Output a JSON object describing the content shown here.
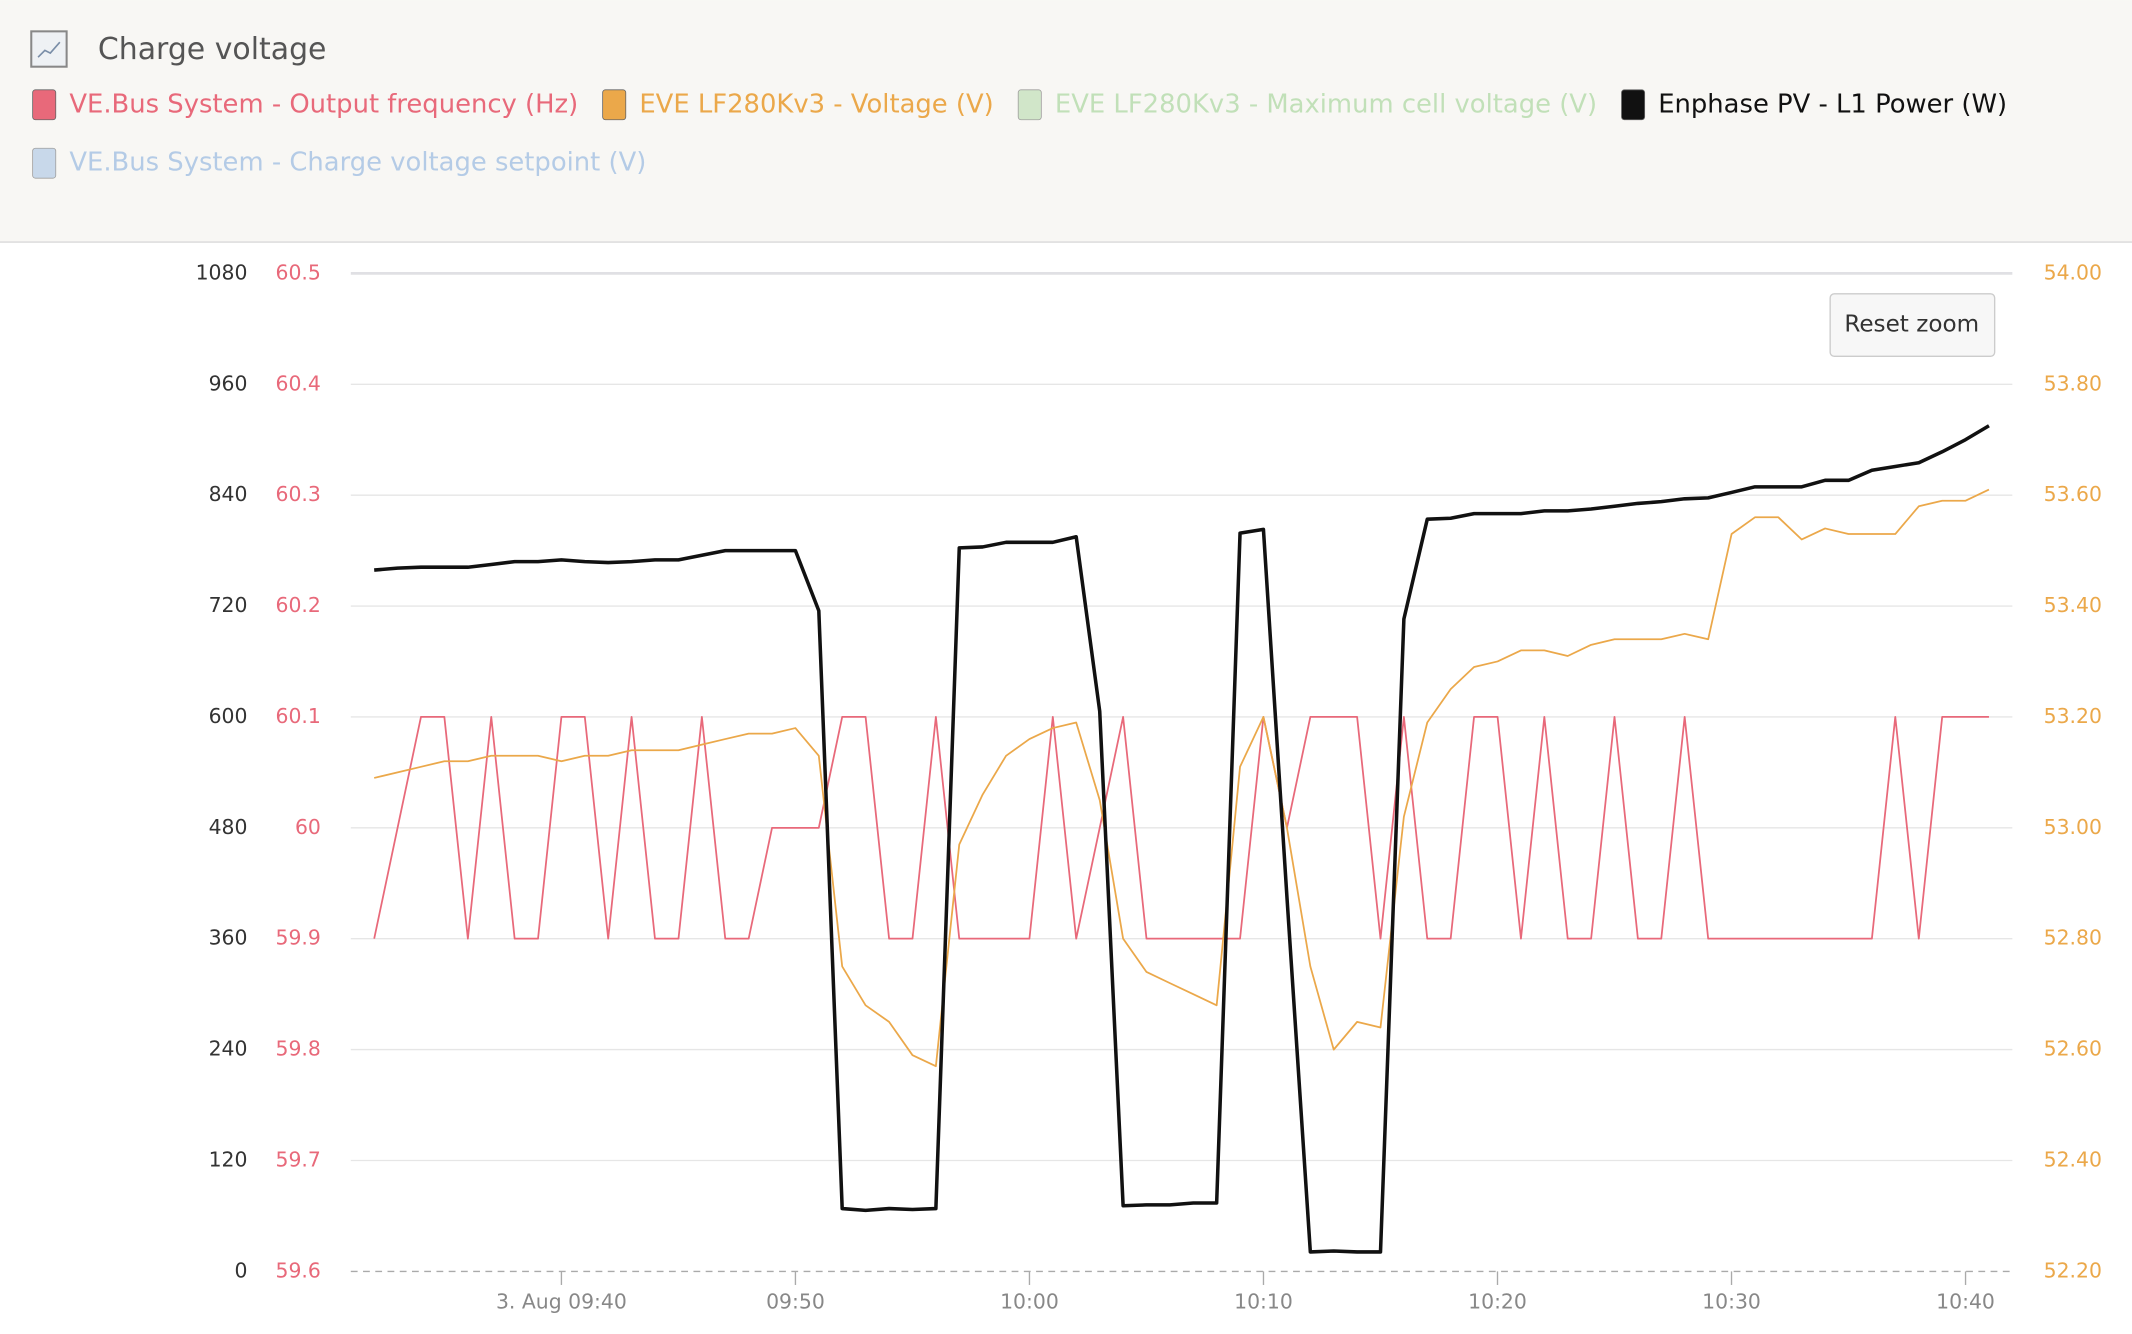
{
  "header": {
    "title": "Charge voltage",
    "button": "Reset zoom"
  },
  "chart_data": {
    "type": "line",
    "x": [
      "09:32",
      "09:33",
      "09:34",
      "09:35",
      "09:36",
      "09:37",
      "09:38",
      "09:39",
      "09:40",
      "09:41",
      "09:42",
      "09:43",
      "09:44",
      "09:45",
      "09:46",
      "09:47",
      "09:48",
      "09:49",
      "09:50",
      "09:51",
      "09:52",
      "09:53",
      "09:54",
      "09:55",
      "09:56",
      "09:57",
      "09:58",
      "09:59",
      "10:00",
      "10:01",
      "10:02",
      "10:03",
      "10:04",
      "10:05",
      "10:06",
      "10:07",
      "10:08",
      "10:09",
      "10:10",
      "10:11",
      "10:12",
      "10:13",
      "10:14",
      "10:15",
      "10:16",
      "10:17",
      "10:18",
      "10:19",
      "10:20",
      "10:21",
      "10:22",
      "10:23",
      "10:24",
      "10:25",
      "10:26",
      "10:27",
      "10:28",
      "10:29",
      "10:30",
      "10:31",
      "10:32",
      "10:33",
      "10:34",
      "10:35",
      "10:36",
      "10:37",
      "10:38",
      "10:39",
      "10:40",
      "10:41"
    ],
    "xlim": [
      "09:31",
      "10:42"
    ],
    "xticks": [
      {
        "value": "09:40",
        "label": "3. Aug 09:40"
      },
      "09:50",
      "10:00",
      "10:10",
      "10:20",
      "10:30",
      "10:40"
    ],
    "ylim": [
      0,
      1080
    ],
    "yticks": [
      0,
      120,
      240,
      360,
      480,
      600,
      720,
      840,
      960,
      1080
    ],
    "y2lim": [
      59.6,
      60.5
    ],
    "y2ticks": [
      59.6,
      59.7,
      59.8,
      59.9,
      60,
      60.1,
      60.2,
      60.3,
      60.4,
      60.5
    ],
    "y3lim": [
      52.2,
      54.0
    ],
    "y3ticks": [
      {
        "value": 52.2,
        "label": "52.20"
      },
      {
        "value": 52.4,
        "label": "52.40"
      },
      {
        "value": 52.6,
        "label": "52.60"
      },
      {
        "value": 52.8,
        "label": "52.80"
      },
      {
        "value": 53,
        "label": "53.00"
      },
      {
        "value": 53.2,
        "label": "53.20"
      },
      {
        "value": 53.4,
        "label": "53.40"
      },
      {
        "value": 53.6,
        "label": "53.60"
      },
      {
        "value": 53.8,
        "label": "53.80"
      },
      {
        "value": 54,
        "label": "54.00"
      }
    ],
    "grid": true,
    "series": [
      {
        "name": "VE.Bus System - Output frequency (Hz)",
        "color": "#e8697a",
        "axis": "y2",
        "visible": true,
        "values": [
          59.9,
          60,
          60.1,
          60.1,
          59.9,
          60.1,
          59.9,
          59.9,
          60.1,
          60.1,
          59.9,
          60.1,
          59.9,
          59.9,
          60.1,
          59.9,
          59.9,
          60,
          60,
          60,
          60.1,
          60.1,
          59.9,
          59.9,
          60.1,
          59.9,
          59.9,
          59.9,
          59.9,
          60.1,
          59.9,
          60,
          60.1,
          59.9,
          59.9,
          59.9,
          59.9,
          59.9,
          60.1,
          60,
          60.1,
          60.1,
          60.1,
          59.9,
          60.1,
          59.9,
          59.9,
          60.1,
          60.1,
          59.9,
          60.1,
          59.9,
          59.9,
          60.1,
          59.9,
          59.9,
          60.1,
          59.9,
          59.9,
          59.9,
          59.9,
          59.9,
          59.9,
          59.9,
          59.9,
          60.1,
          59.9,
          60.1,
          60.1,
          60.1
        ]
      },
      {
        "name": "EVE LF280Kv3 - Voltage (V)",
        "color": "#eba84a",
        "axis": "y3",
        "visible": true,
        "values": [
          53.09,
          53.1,
          53.11,
          53.12,
          53.12,
          53.13,
          53.13,
          53.13,
          53.12,
          53.13,
          53.13,
          53.14,
          53.14,
          53.14,
          53.15,
          53.16,
          53.17,
          53.17,
          53.18,
          53.13,
          52.75,
          52.68,
          52.65,
          52.59,
          52.57,
          52.97,
          53.06,
          53.13,
          53.16,
          53.18,
          53.19,
          53.05,
          52.8,
          52.74,
          52.72,
          52.7,
          52.68,
          53.11,
          53.2,
          53.0,
          52.75,
          52.6,
          52.65,
          52.64,
          53.02,
          53.19,
          53.25,
          53.29,
          53.3,
          53.32,
          53.32,
          53.31,
          53.33,
          53.34,
          53.34,
          53.34,
          53.35,
          53.34,
          53.53,
          53.56,
          53.56,
          53.52,
          53.54,
          53.53,
          53.53,
          53.53,
          53.58,
          53.59,
          53.59,
          53.61
        ]
      },
      {
        "name": "EVE LF280Kv3 - Maximum cell voltage (V)",
        "color": "#b8dcae",
        "axis": "y3",
        "visible": false
      },
      {
        "name": "Enphase PV - L1 Power (W)",
        "color": "#111111",
        "axis": "y",
        "visible": true,
        "values": [
          759,
          761,
          762,
          762,
          762,
          765,
          768,
          768,
          770,
          768,
          767,
          768,
          770,
          770,
          775,
          780,
          780,
          780,
          780,
          715,
          68,
          66,
          68,
          67,
          68,
          783,
          784,
          789,
          789,
          789,
          795,
          606,
          71,
          72,
          72,
          74,
          74,
          799,
          803,
          405,
          21,
          22,
          21,
          21,
          706,
          814,
          815,
          820,
          820,
          820,
          823,
          823,
          825,
          828,
          831,
          833,
          836,
          837,
          843,
          849,
          849,
          849,
          856,
          856,
          867,
          871,
          875,
          887,
          900,
          915
        ]
      },
      {
        "name": "VE.Bus System - Charge voltage setpoint (V)",
        "color": "#a9c4e4",
        "axis": "y3",
        "visible": false
      }
    ]
  }
}
